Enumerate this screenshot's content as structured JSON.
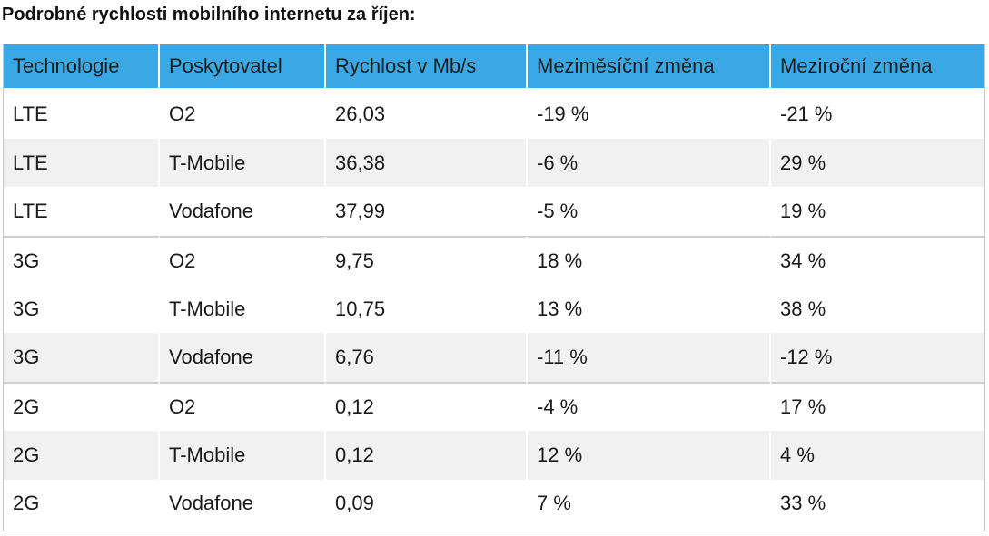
{
  "title": "Podrobné rychlosti mobilního internetu za říjen:",
  "table": {
    "headers": [
      "Technologie",
      "Poskytovatel",
      "Rychlost v Mb/s",
      "Meziměsíční změna",
      "Meziroční změna"
    ],
    "rows": [
      [
        "LTE",
        "O2",
        "26,03",
        "-19 %",
        "-21 %"
      ],
      [
        "LTE",
        "T-Mobile",
        "36,38",
        "-6 %",
        "29 %"
      ],
      [
        "LTE",
        "Vodafone",
        "37,99",
        "-5 %",
        "19 %"
      ],
      [
        "3G",
        "O2",
        "9,75",
        "18 %",
        "34 %"
      ],
      [
        "3G",
        "T-Mobile",
        "10,75",
        "13 %",
        "38 %"
      ],
      [
        "3G",
        "Vodafone",
        "6,76",
        "-11 %",
        "-12 %"
      ],
      [
        "2G",
        "O2",
        "0,12",
        "-4 %",
        "17 %"
      ],
      [
        "2G",
        "T-Mobile",
        "0,12",
        "12 %",
        "4 %"
      ],
      [
        "2G",
        "Vodafone",
        "0,09",
        "7 %",
        "33 %"
      ]
    ]
  },
  "colors": {
    "header_bg": "#3aa8e4",
    "row_alt_bg": "#f1f1f1",
    "row_bg": "#ffffff"
  }
}
